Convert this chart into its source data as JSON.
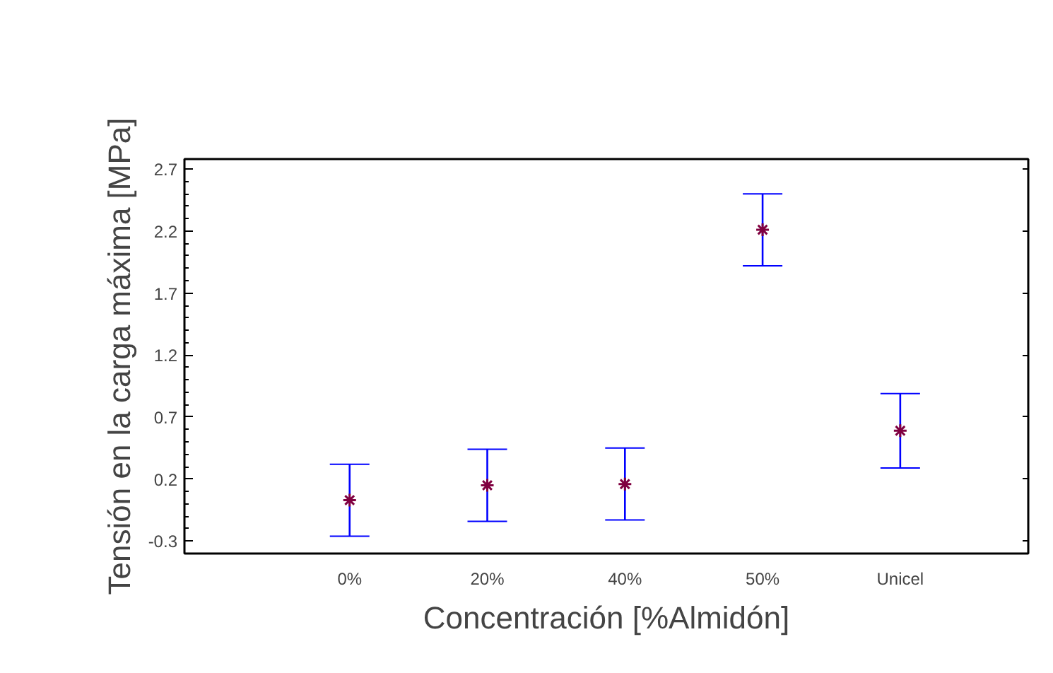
{
  "chart_data": {
    "type": "scatter",
    "xlabel": "Concentración [%Almidón]",
    "ylabel": "Tensión en la carga máxima [MPa]",
    "categories": [
      "0%",
      "20%",
      "40%",
      "50%",
      "Unicel"
    ],
    "series": [
      {
        "color": "#800040",
        "values": [
          0.03,
          0.15,
          0.16,
          2.21,
          0.59
        ],
        "errors": [
          0.29,
          0.29,
          0.29,
          0.29,
          0.3
        ]
      }
    ],
    "ylim": [
      -0.4,
      2.78
    ],
    "yticks": [
      -0.3,
      0.2,
      0.7,
      1.2,
      1.7,
      2.2,
      2.7
    ],
    "grid": false,
    "marker": "cross"
  }
}
